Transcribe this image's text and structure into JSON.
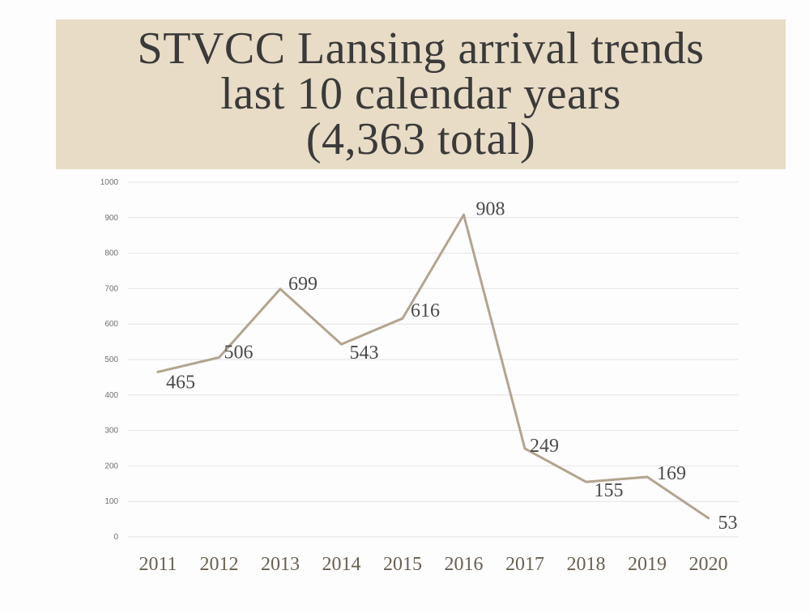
{
  "title": {
    "line1": "STVCC Lansing arrival trends",
    "line2": "last 10 calendar years",
    "line3": "(4,363 total)"
  },
  "colors": {
    "banner": "#e8dcc6",
    "line": "#b3a48f",
    "grid": "#e4e4e4"
  },
  "chart_data": {
    "type": "line",
    "categories": [
      "2011",
      "2012",
      "2013",
      "2014",
      "2015",
      "2016",
      "2017",
      "2018",
      "2019",
      "2020"
    ],
    "series": [
      {
        "values": [
          465,
          506,
          699,
          543,
          616,
          908,
          249,
          155,
          169,
          53
        ]
      }
    ],
    "data_labels": [
      "465",
      "506",
      "699",
      "543",
      "616",
      "908",
      "249",
      "155",
      "169",
      "53"
    ],
    "yticks": [
      "0",
      "100",
      "200",
      "300",
      "400",
      "500",
      "600",
      "700",
      "800",
      "900",
      "1000"
    ],
    "ylim": [
      0,
      1000
    ],
    "xlabel": "",
    "ylabel": "",
    "grid": true,
    "legend": "none"
  }
}
